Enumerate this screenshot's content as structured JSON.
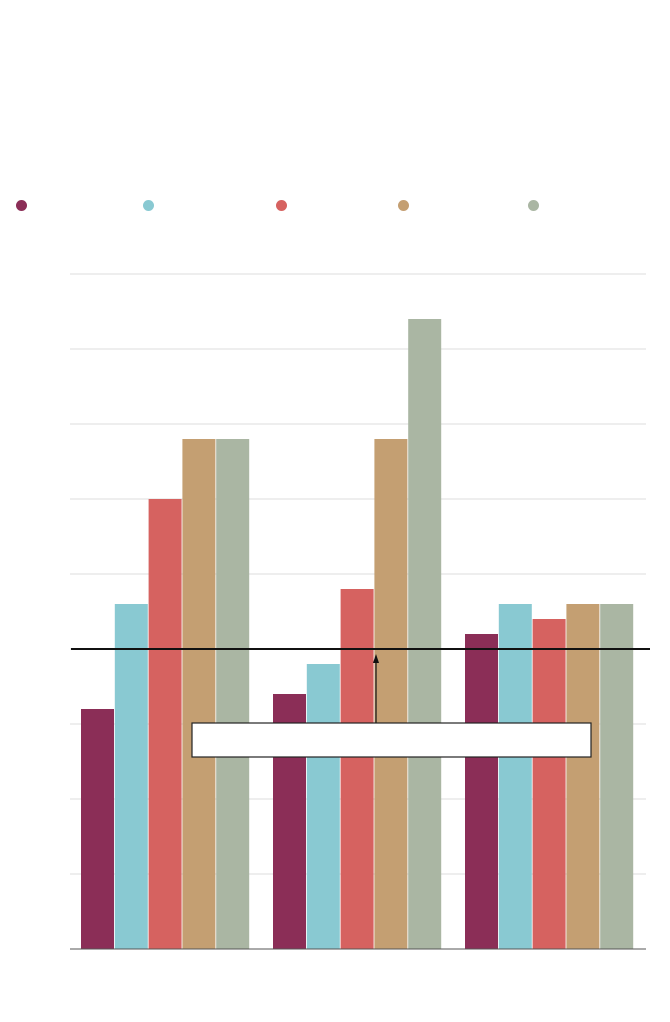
{
  "chart_data": {
    "type": "bar",
    "title": "",
    "xlabel": "",
    "ylabel": "",
    "categories": [
      "",
      "",
      ""
    ],
    "ylim": [
      0,
      9
    ],
    "grid": true,
    "legend_position": "top",
    "reference_line": 4,
    "annotation": "",
    "series": [
      {
        "color": "#8b2e57",
        "values": [
          3.2,
          3.4,
          4.2
        ]
      },
      {
        "color": "#89c9d2",
        "values": [
          4.6,
          3.8,
          4.6
        ]
      },
      {
        "color": "#d66260",
        "values": [
          6.0,
          4.8,
          4.4
        ]
      },
      {
        "color": "#c49f72",
        "values": [
          6.8,
          6.8,
          4.6
        ]
      },
      {
        "color": "#aab6a3",
        "values": [
          6.8,
          8.4,
          4.6
        ]
      }
    ]
  }
}
